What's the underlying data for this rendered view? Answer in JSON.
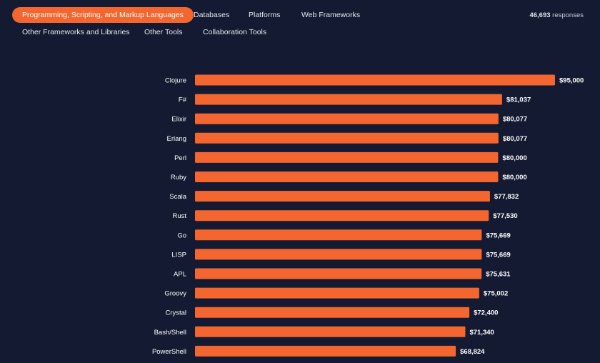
{
  "tabs": [
    {
      "label": "Programming, Scripting, and Markup Languages",
      "active": true
    },
    {
      "label": "Databases",
      "active": false
    },
    {
      "label": "Platforms",
      "active": false
    },
    {
      "label": "Web Frameworks",
      "active": false
    },
    {
      "label": "Other Frameworks and Libraries",
      "active": false
    },
    {
      "label": "Other Tools",
      "active": false
    },
    {
      "label": "Collaboration Tools",
      "active": false
    }
  ],
  "responses": {
    "count": "46,693",
    "label": "responses"
  },
  "colors": {
    "background": "#131a31",
    "accent": "#f4662f",
    "bar": "#f4662f",
    "text": "#ffffff"
  },
  "chart_data": {
    "type": "bar",
    "orientation": "horizontal",
    "title": "",
    "xlabel": "",
    "ylabel": "",
    "categories": [
      "Clojure",
      "F#",
      "Elixir",
      "Erlang",
      "Perl",
      "Ruby",
      "Scala",
      "Rust",
      "Go",
      "LISP",
      "APL",
      "Groovy",
      "Crystal",
      "Bash/Shell",
      "PowerShell"
    ],
    "values": [
      95000,
      81037,
      80077,
      80077,
      80000,
      80000,
      77832,
      77530,
      75669,
      75669,
      75631,
      75002,
      72400,
      71340,
      68824
    ],
    "value_labels": [
      "$95,000",
      "$81,037",
      "$80,077",
      "$80,077",
      "$80,000",
      "$80,000",
      "$77,832",
      "$77,530",
      "$75,669",
      "$75,669",
      "$75,631",
      "$75,002",
      "$72,400",
      "$71,340",
      "$68,824"
    ],
    "xlim": [
      0,
      95000
    ]
  }
}
